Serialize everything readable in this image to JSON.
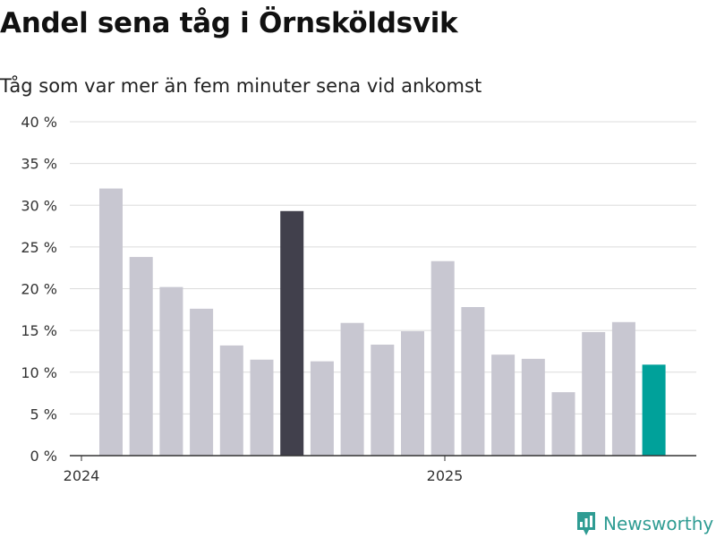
{
  "title": "Andel sena tåg i Örnsköldsvik",
  "subtitle": "Tåg som var mer än fem minuter sena vid ankomst",
  "brand": "Newsworthy",
  "colors": {
    "default_bar": "#c8c7d1",
    "highlight_dark": "#41404c",
    "highlight_teal": "#00a19a",
    "grid": "#dcdcdc",
    "axis": "#333333",
    "brand": "#2f9c93"
  },
  "chart_data": {
    "type": "bar",
    "title": "Andel sena tåg i Örnsköldsvik",
    "subtitle": "Tåg som var mer än fem minuter sena vid ankomst",
    "ylim": [
      0,
      40
    ],
    "yticks": [
      0,
      5,
      10,
      15,
      20,
      25,
      30,
      35,
      40
    ],
    "ytick_labels": [
      "0 %",
      "5 %",
      "10 %",
      "15 %",
      "20 %",
      "25 %",
      "30 %",
      "35 %",
      "40 %"
    ],
    "xtick_labels": [
      "2024",
      "2025"
    ],
    "xtick_at_bar": [
      0,
      12
    ],
    "values": [
      32.0,
      23.8,
      20.2,
      17.6,
      13.2,
      11.5,
      29.3,
      11.3,
      15.9,
      13.3,
      14.9,
      23.3,
      17.8,
      12.1,
      11.6,
      7.6,
      14.8,
      16.0,
      10.9
    ],
    "bar_colors": [
      "default",
      "default",
      "default",
      "default",
      "default",
      "default",
      "dark",
      "default",
      "default",
      "default",
      "default",
      "default",
      "default",
      "default",
      "default",
      "default",
      "default",
      "default",
      "teal"
    ],
    "grid": true,
    "legend": "none"
  }
}
